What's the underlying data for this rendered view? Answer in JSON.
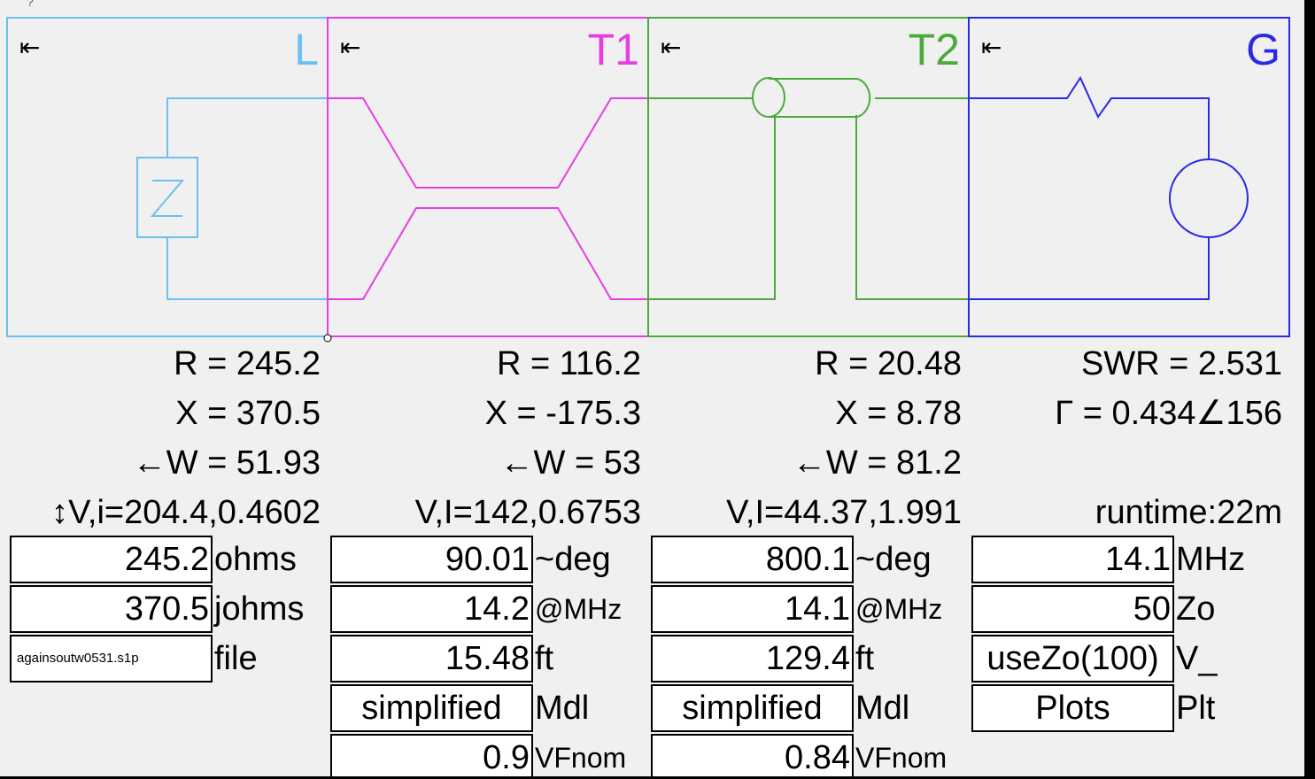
{
  "help_mark": "?",
  "arrow_glyph": "⇤",
  "panels": {
    "L": {
      "title": "L",
      "color": "#6ac0f0"
    },
    "T1": {
      "title": "T1",
      "color": "#e63ee6"
    },
    "T2": {
      "title": "T2",
      "color": "#4caa3c"
    },
    "G": {
      "title": "G",
      "color": "#2a2ae6"
    }
  },
  "readouts": {
    "L": {
      "r": "R = 245.2",
      "x": "X = 370.5",
      "w": "←W = 51.93",
      "vi": "↕V,i=204.4,0.4602"
    },
    "T1": {
      "r": "R = 116.2",
      "x": "X = -175.3",
      "w": "←W = 53",
      "vi": "V,I=142,0.6753"
    },
    "T2": {
      "r": "R = 20.48",
      "x": "X = 8.78",
      "w": "←W = 81.2",
      "vi": "V,I=44.37,1.991"
    },
    "G": {
      "swr": "SWR = 2.531",
      "gamma": "Γ = 0.434∠156",
      "runtime": "runtime:22m"
    }
  },
  "fields": {
    "L": [
      {
        "value": "245.2",
        "unit": "ohms"
      },
      {
        "value": "370.5",
        "unit": "johms"
      },
      {
        "value": "againsoutw0531.s1p",
        "unit": "file"
      }
    ],
    "T1": [
      {
        "value": "90.01",
        "unit": "~deg"
      },
      {
        "value": "14.2",
        "unit": "@MHz"
      },
      {
        "value": "15.48",
        "unit": "ft"
      },
      {
        "value": "simplified",
        "unit": "Mdl"
      },
      {
        "value": "0.9",
        "unit": "VFnom"
      }
    ],
    "T2": [
      {
        "value": "800.1",
        "unit": "~deg"
      },
      {
        "value": "14.1",
        "unit": "@MHz"
      },
      {
        "value": "129.4",
        "unit": "ft"
      },
      {
        "value": "simplified",
        "unit": "Mdl"
      },
      {
        "value": "0.84",
        "unit": "VFnom"
      }
    ],
    "G": [
      {
        "value": "14.1",
        "unit": "MHz"
      },
      {
        "value": "50",
        "unit": "Zo"
      },
      {
        "value": "useZo(100)",
        "unit": "V_"
      },
      {
        "value": "Plots",
        "unit": "Plt"
      }
    ]
  }
}
